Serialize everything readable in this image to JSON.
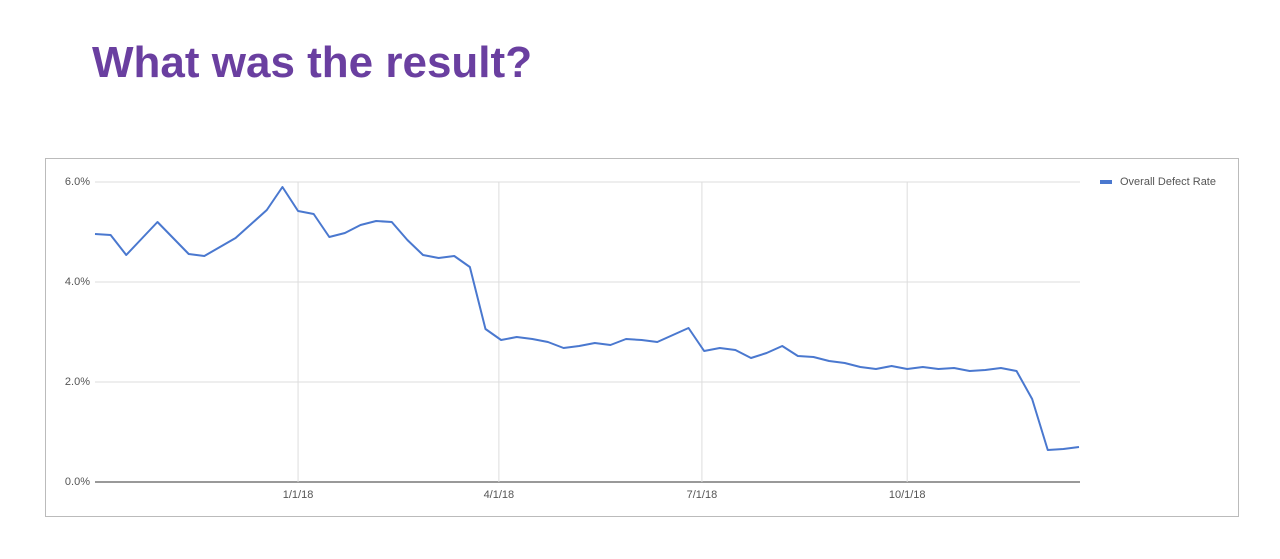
{
  "title": "What was the result?",
  "chart_data": {
    "type": "line",
    "x": [
      "2017-10-02",
      "2017-10-09",
      "2017-10-16",
      "2017-10-23",
      "2017-10-30",
      "2017-11-06",
      "2017-11-13",
      "2017-11-20",
      "2017-11-27",
      "2017-12-04",
      "2017-12-11",
      "2017-12-18",
      "2017-12-25",
      "2018-01-01",
      "2018-01-08",
      "2018-01-15",
      "2018-01-22",
      "2018-01-29",
      "2018-02-05",
      "2018-02-12",
      "2018-02-19",
      "2018-02-26",
      "2018-03-05",
      "2018-03-12",
      "2018-03-19",
      "2018-03-26",
      "2018-04-02",
      "2018-04-09",
      "2018-04-16",
      "2018-04-23",
      "2018-04-30",
      "2018-05-07",
      "2018-05-14",
      "2018-05-21",
      "2018-05-28",
      "2018-06-04",
      "2018-06-11",
      "2018-06-18",
      "2018-06-25",
      "2018-07-02",
      "2018-07-09",
      "2018-07-16",
      "2018-07-23",
      "2018-07-30",
      "2018-08-06",
      "2018-08-13",
      "2018-08-20",
      "2018-08-27",
      "2018-09-03",
      "2018-09-10",
      "2018-09-17",
      "2018-09-24",
      "2018-10-01",
      "2018-10-08",
      "2018-10-15",
      "2018-10-22",
      "2018-10-29",
      "2018-11-05",
      "2018-11-12",
      "2018-11-19",
      "2018-11-26",
      "2018-12-03",
      "2018-12-10",
      "2018-12-17"
    ],
    "series": [
      {
        "name": "Overall Defect Rate",
        "color": "#4a78cf",
        "values": [
          4.96,
          4.94,
          4.54,
          4.87,
          5.2,
          4.88,
          4.56,
          4.52,
          4.7,
          4.88,
          5.16,
          5.44,
          5.9,
          5.42,
          5.36,
          4.9,
          4.98,
          5.14,
          5.22,
          5.2,
          4.84,
          4.54,
          4.48,
          4.52,
          4.3,
          3.06,
          2.84,
          2.9,
          2.86,
          2.8,
          2.68,
          2.72,
          2.78,
          2.74,
          2.86,
          2.84,
          2.8,
          2.94,
          3.08,
          2.62,
          2.68,
          2.64,
          2.48,
          2.58,
          2.72,
          2.52,
          2.5,
          2.42,
          2.38,
          2.3,
          2.26,
          2.32,
          2.26,
          2.3,
          2.26,
          2.28,
          2.22,
          2.24,
          2.28,
          2.22,
          1.66,
          0.64,
          0.66,
          0.7
        ]
      }
    ],
    "xlim": [
      "2017-10-02",
      "2018-12-17"
    ],
    "xticks": [
      {
        "value": "2018-01-01",
        "label": "1/1/18"
      },
      {
        "value": "2018-04-01",
        "label": "4/1/18"
      },
      {
        "value": "2018-07-01",
        "label": "7/1/18"
      },
      {
        "value": "2018-10-01",
        "label": "10/1/18"
      }
    ],
    "ylim": [
      0,
      6
    ],
    "yticks": [
      {
        "value": 0,
        "label": "0.0%"
      },
      {
        "value": 2,
        "label": "2.0%"
      },
      {
        "value": 4,
        "label": "4.0%"
      },
      {
        "value": 6,
        "label": "6.0%"
      }
    ],
    "grid": true,
    "legend": "top-right"
  }
}
